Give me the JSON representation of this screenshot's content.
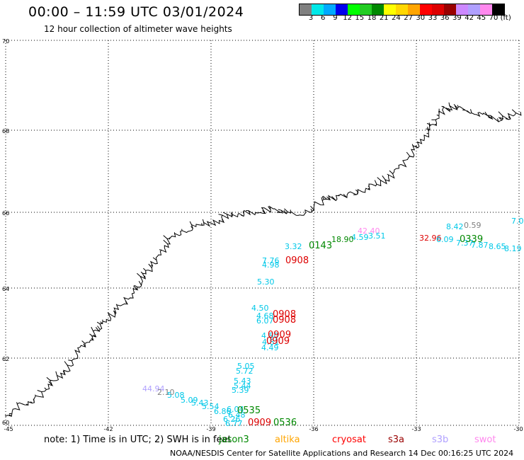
{
  "header": {
    "title": "00:00 – 11:59 UTC 03/01/2024",
    "subtitle": "12 hour collection of altimeter wave heights"
  },
  "legend": {
    "colors": [
      "#808080",
      "#00e8e8",
      "#00aaff",
      "#0000ee",
      "#00ff00",
      "#22cc22",
      "#008800",
      "#ffff00",
      "#ffd700",
      "#ffa500",
      "#ff0000",
      "#dd0000",
      "#990000",
      "#cc88ff",
      "#b0a0ff",
      "#ff88ee",
      "#000000"
    ],
    "labels": [
      "3",
      "6",
      "9",
      "12",
      "15",
      "18",
      "21",
      "24",
      "27",
      "30",
      "33",
      "36",
      "39",
      "42",
      "45",
      "70",
      "(ft)"
    ]
  },
  "axes": {
    "lat_labels": [
      "70",
      "68",
      "66",
      "64",
      "62",
      "60"
    ],
    "lon_labels": [
      "-45",
      "-42",
      "-39",
      "-36",
      "-33",
      "-30"
    ]
  },
  "observations": [
    {
      "text": "7.0",
      "color": "#00c8e8"
    },
    {
      "text": "8.42",
      "color": "#00c8e8"
    },
    {
      "text": "0.59",
      "color": "#808080"
    },
    {
      "text": "42.40",
      "color": "#ff88ee"
    },
    {
      "text": "4.59",
      "color": "#00c8e8"
    },
    {
      "text": "3.51",
      "color": "#00c8e8"
    },
    {
      "text": "18.90",
      "color": "#008800"
    },
    {
      "text": "32.96",
      "color": "#dd0000"
    },
    {
      "text": "6.09",
      "color": "#00c8e8"
    },
    {
      "text": "7.37",
      "color": "#00c8e8"
    },
    {
      "text": "7.87",
      "color": "#00c8e8"
    },
    {
      "text": "8.65",
      "color": "#00c8e8"
    },
    {
      "text": "8.19",
      "color": "#00c8e8"
    },
    {
      "text": "3.32",
      "color": "#00c8e8"
    },
    {
      "text": "7.76",
      "color": "#00c8e8"
    },
    {
      "text": "4.98",
      "color": "#00c8e8"
    },
    {
      "text": "5.30",
      "color": "#00c8e8"
    },
    {
      "text": "4.50",
      "color": "#00c8e8"
    },
    {
      "text": "4.68",
      "color": "#00c8e8"
    },
    {
      "text": "6.07",
      "color": "#00c8e8"
    },
    {
      "text": "4.80",
      "color": "#00c8e8"
    },
    {
      "text": "4.81",
      "color": "#00c8e8"
    },
    {
      "text": "4.49",
      "color": "#00c8e8"
    },
    {
      "text": "5.05",
      "color": "#00c8e8"
    },
    {
      "text": "5.72",
      "color": "#00c8e8"
    },
    {
      "text": "5.43",
      "color": "#00c8e8"
    },
    {
      "text": "5.44",
      "color": "#00c8e8"
    },
    {
      "text": "5.39",
      "color": "#00c8e8"
    },
    {
      "text": "44.94",
      "color": "#b0a0ff"
    },
    {
      "text": "2.10",
      "color": "#808080"
    },
    {
      "text": "5.08",
      "color": "#00c8e8"
    },
    {
      "text": "5.09",
      "color": "#00c8e8"
    },
    {
      "text": "5.43",
      "color": "#00c8e8"
    },
    {
      "text": "5.54",
      "color": "#00c8e8"
    },
    {
      "text": "6.86",
      "color": "#00c8e8"
    },
    {
      "text": "6.04",
      "color": "#00c8e8"
    },
    {
      "text": "6.48",
      "color": "#00c8e8"
    },
    {
      "text": "6.26",
      "color": "#00c8e8"
    },
    {
      "text": "6.77",
      "color": "#00c8e8"
    }
  ],
  "passes": [
    {
      "text": "0339",
      "color": "#008800"
    },
    {
      "text": "0143",
      "color": "#008800"
    },
    {
      "text": "0908",
      "color": "#dd0000"
    },
    {
      "text": "0908",
      "color": "#dd0000"
    },
    {
      "text": "0908",
      "color": "#dd0000"
    },
    {
      "text": "0909",
      "color": "#dd0000"
    },
    {
      "text": "0909",
      "color": "#dd0000"
    },
    {
      "text": "0535",
      "color": "#008800"
    },
    {
      "text": "0909",
      "color": "#dd0000"
    },
    {
      "text": "0536",
      "color": "#008800"
    }
  ],
  "footer": {
    "note": "note: 1) Time is in UTC; 2) SWH is in feet",
    "satellites": [
      {
        "name": "jason3",
        "color": "#008800"
      },
      {
        "name": "altika",
        "color": "#ffa500"
      },
      {
        "name": "cryosat",
        "color": "#ff0000"
      },
      {
        "name": "s3a",
        "color": "#990000"
      },
      {
        "name": "s3b",
        "color": "#b0a0ff"
      },
      {
        "name": "swot",
        "color": "#ff88ee"
      }
    ],
    "credit": "NOAA/NESDIS Center for Satellite Applications and Research    14 Dec 00:16:25 UTC 2024"
  }
}
